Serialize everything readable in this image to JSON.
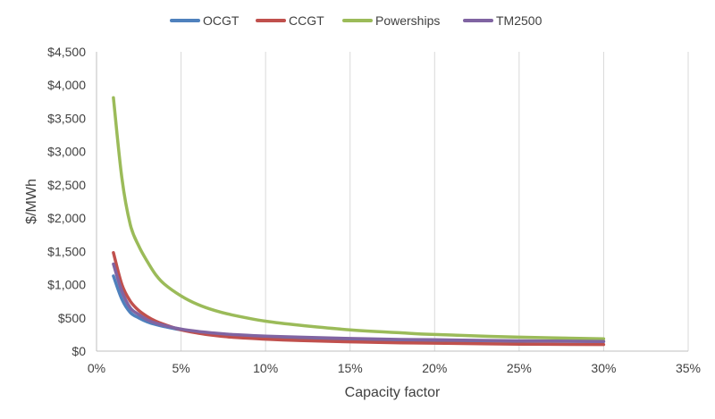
{
  "chart_data": {
    "type": "line",
    "title": "",
    "xlabel": "Capacity factor",
    "ylabel": "$/MWh",
    "xlim": [
      0,
      35
    ],
    "ylim": [
      0,
      4500
    ],
    "x_ticks": [
      0,
      5,
      10,
      15,
      20,
      25,
      30,
      35
    ],
    "x_tick_labels": [
      "0%",
      "5%",
      "10%",
      "15%",
      "20%",
      "25%",
      "30%",
      "35%"
    ],
    "y_ticks": [
      0,
      500,
      1000,
      1500,
      2000,
      2500,
      3000,
      3500,
      4000,
      4500
    ],
    "y_tick_labels": [
      "$0",
      "$500",
      "$1,000",
      "$1,500",
      "$2,000",
      "$2,500",
      "$3,000",
      "$3,500",
      "$4,000",
      "$4,500"
    ],
    "grid": "vertical",
    "legend_position": "top",
    "x": [
      1,
      1.5,
      2,
      2.5,
      3,
      3.5,
      4,
      5,
      6,
      7,
      8,
      10,
      12,
      15,
      18,
      20,
      25,
      30
    ],
    "series": [
      {
        "name": "OCGT",
        "color": "#4F81BD",
        "values": [
          1130,
          780,
          580,
          500,
          440,
          400,
          370,
          320,
          290,
          265,
          245,
          220,
          200,
          180,
          165,
          160,
          150,
          145
        ]
      },
      {
        "name": "CCGT",
        "color": "#C0504D",
        "values": [
          1480,
          1000,
          750,
          610,
          520,
          450,
          400,
          320,
          270,
          235,
          210,
          180,
          160,
          140,
          125,
          120,
          105,
          100
        ]
      },
      {
        "name": "Powerships",
        "color": "#9BBB59",
        "values": [
          3810,
          2600,
          1900,
          1580,
          1350,
          1150,
          1010,
          830,
          700,
          610,
          545,
          450,
          390,
          320,
          275,
          250,
          210,
          185
        ]
      },
      {
        "name": "TM2500",
        "color": "#8064A2",
        "values": [
          1310,
          900,
          650,
          550,
          470,
          420,
          385,
          330,
          295,
          270,
          250,
          225,
          210,
          190,
          175,
          170,
          155,
          145
        ]
      }
    ]
  }
}
